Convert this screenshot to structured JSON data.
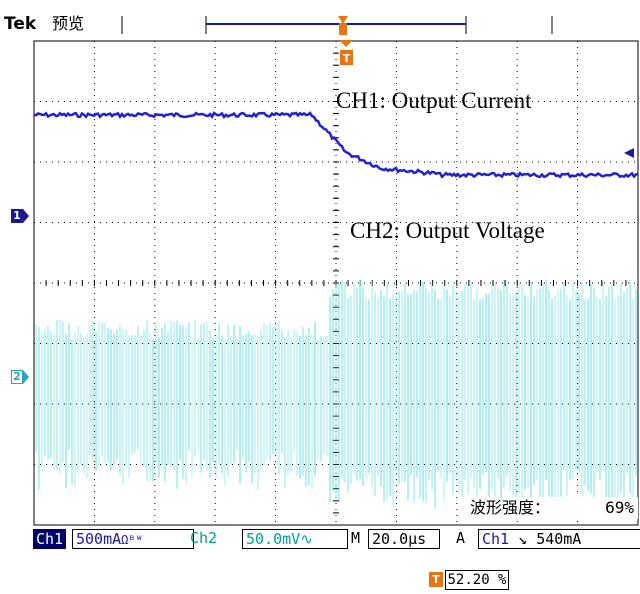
{
  "header": {
    "brand": "Tek",
    "mode": "预览"
  },
  "annotations": {
    "ch1": "CH1: Output Current",
    "ch2": "CH2: Output Voltage"
  },
  "markers": {
    "ch1": "1",
    "ch2": "2",
    "trigger": "T"
  },
  "intensity": {
    "label": "波形强度：",
    "value": "69%"
  },
  "status_bar": {
    "ch1_label": "Ch1",
    "ch1_scale": "500mA",
    "ch1_flags": "Ωᴮᵂ",
    "ch2_label": "Ch2",
    "ch2_scale": "50.0mV",
    "ch2_coupling": "∿",
    "timebase_label": "M",
    "timebase": "20.0µs",
    "trigger_mode": "A",
    "trigger_source": "Ch1",
    "trigger_slope": "↘",
    "trigger_level": "540mA"
  },
  "trigger_position": "52.20 %",
  "colors": {
    "ch1": "#2222cc",
    "ch2": "#40dde0",
    "trigger": "#e87511",
    "grid": "#000000"
  }
}
